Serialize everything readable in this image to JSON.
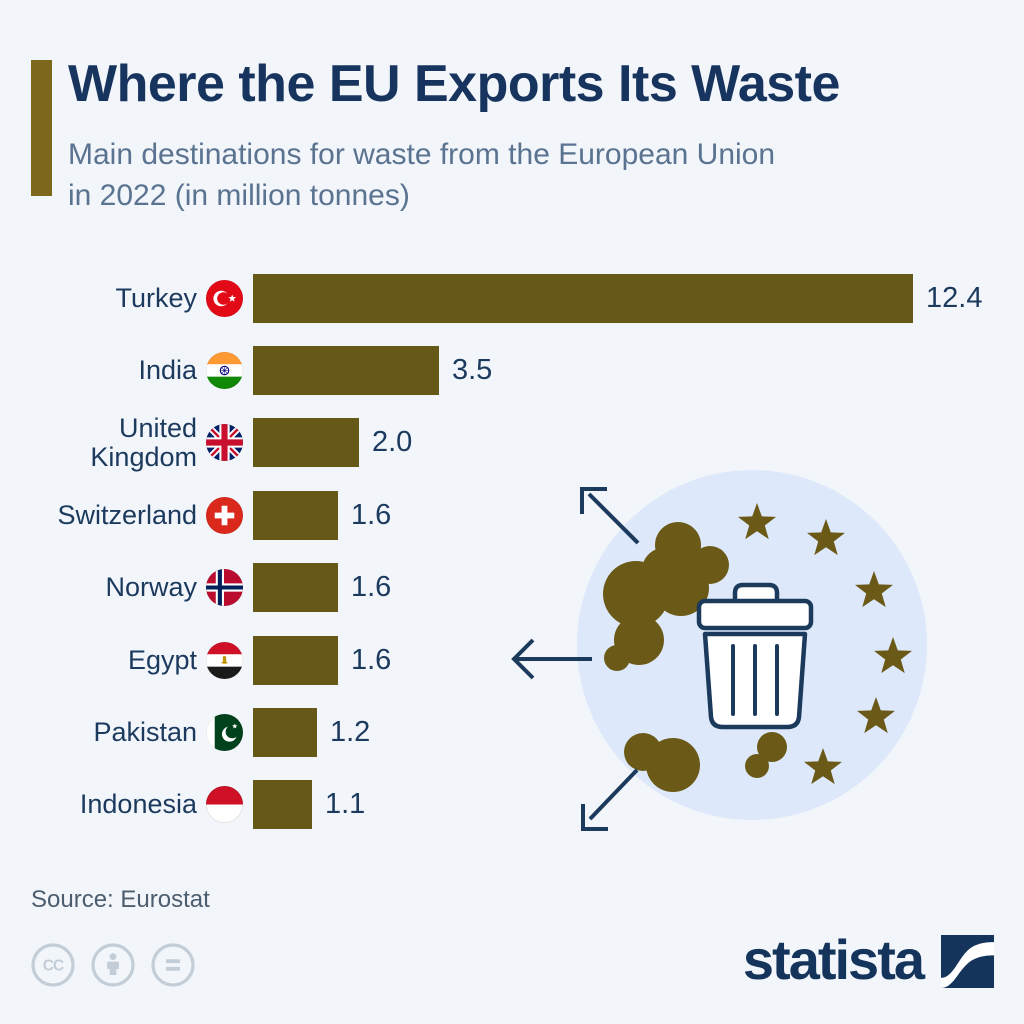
{
  "header": {
    "title": "Where the EU Exports Its Waste",
    "subtitle_line1": "Main destinations for waste from the European Union",
    "subtitle_line2": "in 2022 (in million tonnes)",
    "accent_color": "#7c671c"
  },
  "chart_data": {
    "type": "bar",
    "orientation": "horizontal",
    "title": "Where the EU Exports Its Waste",
    "unit": "million tonnes",
    "categories": [
      "Turkey",
      "India",
      "United Kingdom",
      "Switzerland",
      "Norway",
      "Egypt",
      "Pakistan",
      "Indonesia"
    ],
    "values": [
      12.4,
      3.5,
      2.0,
      1.6,
      1.6,
      1.6,
      1.2,
      1.1
    ],
    "value_labels": [
      "12.4",
      "3.5",
      "2.0",
      "1.6",
      "1.6",
      "1.6",
      "1.2",
      "1.1"
    ],
    "flag_icons": [
      "turkey-flag",
      "india-flag",
      "united-kingdom-flag",
      "switzerland-flag",
      "norway-flag",
      "egypt-flag",
      "pakistan-flag",
      "indonesia-flag"
    ],
    "bar_color": "#665817",
    "xlim": [
      0,
      12.4
    ],
    "grid": false,
    "legend": false
  },
  "illustration": {
    "description": "EU trash can surrounded by gold stars with waste clouds and arrows pointing outward",
    "circle_color": "#dde9fb",
    "star_color": "#6b5a17",
    "blob_color": "#6b5a17",
    "outline_color": "#1b3a5c",
    "star_count": 6,
    "icons": [
      "trash-can-icon",
      "eu-stars-icon",
      "waste-cloud-icon",
      "arrow-up-left-icon",
      "arrow-left-icon",
      "arrow-down-left-icon"
    ]
  },
  "footer": {
    "source": "Source: Eurostat",
    "brand": "statista",
    "license_icons": [
      "cc-icon",
      "attribution-person-icon",
      "equals-icon"
    ]
  }
}
